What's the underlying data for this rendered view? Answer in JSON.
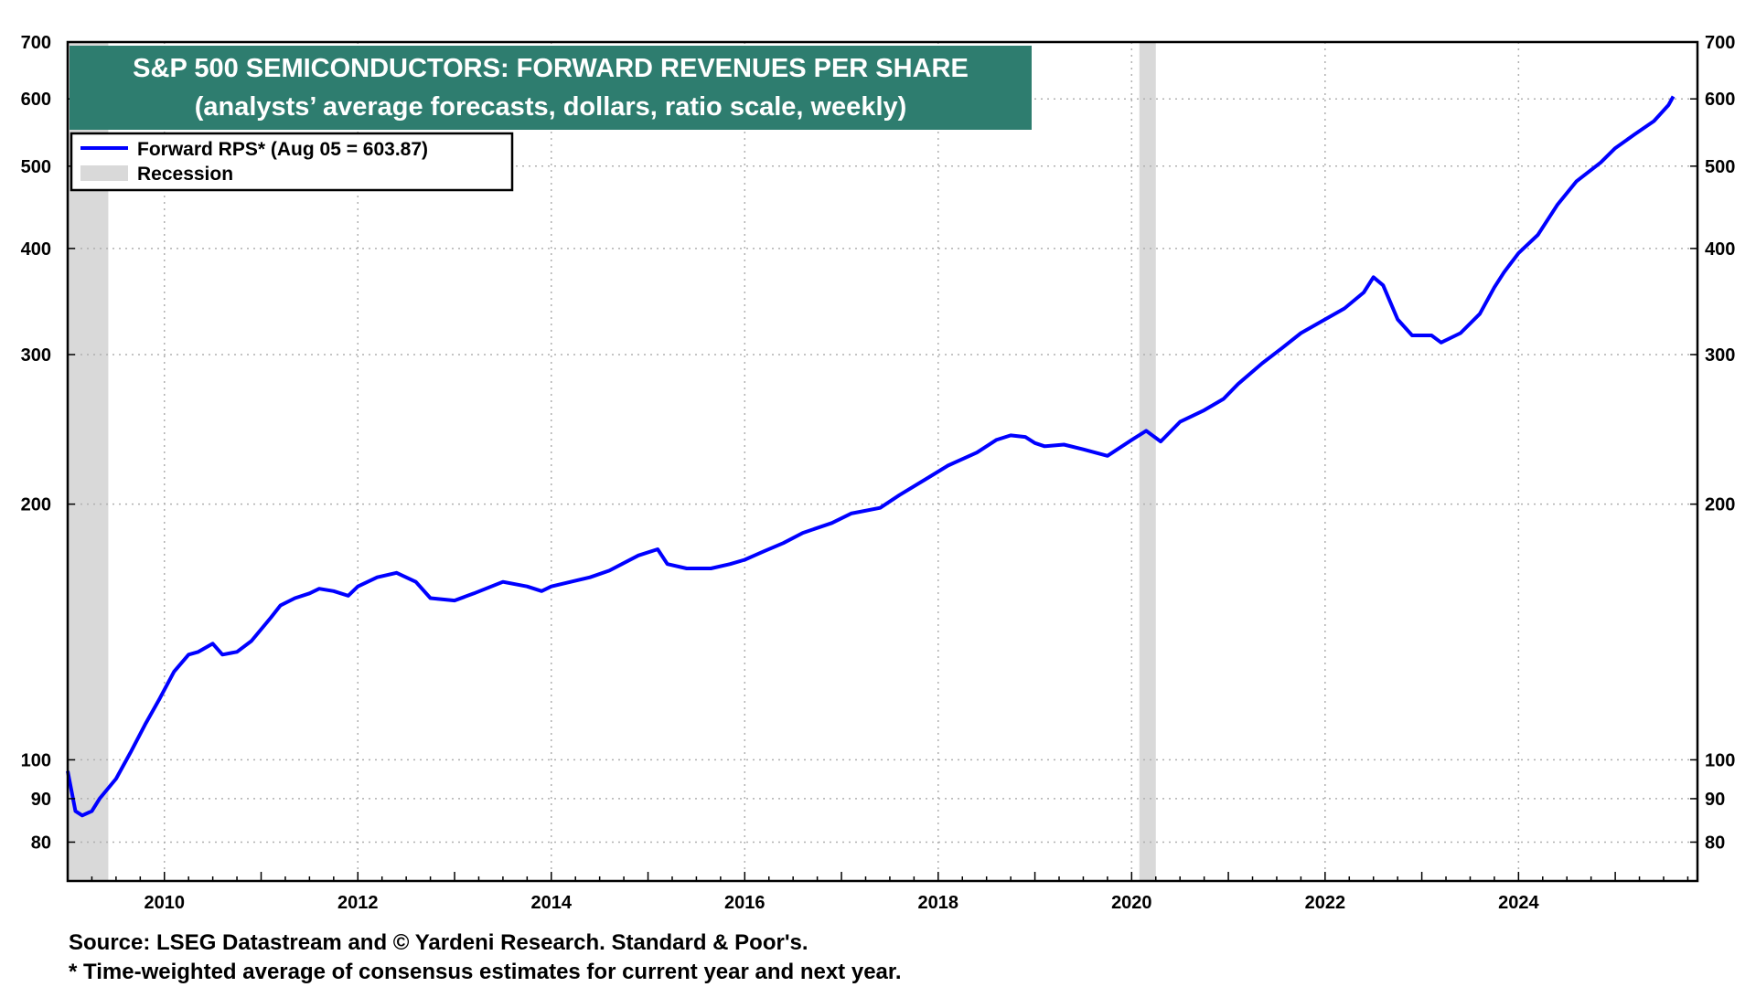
{
  "chart_data": {
    "type": "line",
    "title": "S&P 500 SEMICONDUCTORS: FORWARD REVENUES PER SHARE",
    "subtitle": "(analysts’ average forecasts, dollars, ratio scale, weekly)",
    "ylabel": "",
    "xlabel": "",
    "y_scale": "log",
    "ylim": [
      72,
      700
    ],
    "xlim": [
      2009.0,
      2025.85
    ],
    "y_ticks": [
      80,
      90,
      100,
      200,
      300,
      400,
      500,
      600,
      700
    ],
    "x_ticks": [
      2010,
      2012,
      2014,
      2016,
      2018,
      2020,
      2022,
      2024
    ],
    "grid": true,
    "legend_position": "top-left",
    "line_color": "#0000ff",
    "recession_color": "#d9d9d9",
    "title_box_color": "#2e7d6f",
    "legend": [
      {
        "label": "Forward RPS* (Aug 05 = 603.87)",
        "kind": "line"
      },
      {
        "label": "Recession",
        "kind": "band"
      }
    ],
    "recessions": [
      {
        "start": 2009.0,
        "end": 2009.42
      },
      {
        "start": 2020.08,
        "end": 2020.25
      }
    ],
    "series": [
      {
        "color": "#0000ff",
        "x": [
          2009.0,
          2009.08,
          2009.15,
          2009.25,
          2009.33,
          2009.5,
          2009.65,
          2009.8,
          2009.95,
          2010.1,
          2010.25,
          2010.35,
          2010.5,
          2010.6,
          2010.75,
          2010.9,
          2011.1,
          2011.2,
          2011.35,
          2011.5,
          2011.6,
          2011.75,
          2011.9,
          2012.0,
          2012.2,
          2012.4,
          2012.6,
          2012.75,
          2013.0,
          2013.2,
          2013.5,
          2013.75,
          2013.9,
          2014.0,
          2014.2,
          2014.4,
          2014.6,
          2014.9,
          2015.1,
          2015.2,
          2015.4,
          2015.65,
          2015.85,
          2016.0,
          2016.1,
          2016.2,
          2016.4,
          2016.6,
          2016.9,
          2017.1,
          2017.4,
          2017.6,
          2017.9,
          2018.1,
          2018.4,
          2018.6,
          2018.75,
          2018.9,
          2019.0,
          2019.1,
          2019.3,
          2019.5,
          2019.75,
          2020.0,
          2020.15,
          2020.3,
          2020.5,
          2020.75,
          2020.95,
          2021.1,
          2021.35,
          2021.55,
          2021.75,
          2022.0,
          2022.2,
          2022.4,
          2022.5,
          2022.6,
          2022.75,
          2022.9,
          2023.1,
          2023.2,
          2023.4,
          2023.6,
          2023.75,
          2023.85,
          2024.0,
          2024.2,
          2024.4,
          2024.6,
          2024.85,
          2025.0,
          2025.2,
          2025.4,
          2025.55,
          2025.6
        ],
        "values": [
          97,
          87,
          86,
          87,
          90,
          95,
          102,
          110,
          118,
          127,
          133,
          134,
          137,
          133,
          134,
          138,
          147,
          152,
          155,
          157,
          159,
          158,
          156,
          160,
          164,
          166,
          162,
          155,
          154,
          157,
          162,
          160,
          158,
          160,
          162,
          164,
          167,
          174,
          177,
          170,
          168,
          168,
          170,
          172,
          174,
          176,
          180,
          185,
          190,
          195,
          198,
          205,
          215,
          222,
          230,
          238,
          241,
          240,
          236,
          234,
          235,
          232,
          228,
          238,
          244,
          237,
          250,
          258,
          266,
          277,
          293,
          305,
          318,
          330,
          340,
          355,
          370,
          362,
          330,
          316,
          316,
          310,
          318,
          335,
          360,
          375,
          395,
          415,
          450,
          480,
          505,
          525,
          545,
          565,
          590,
          604
        ]
      }
    ]
  },
  "footnotes": {
    "source": "Source: LSEG Datastream and © Yardeni Research. Standard & Poor's.",
    "note": "* Time-weighted average of consensus estimates for current year and next year."
  }
}
